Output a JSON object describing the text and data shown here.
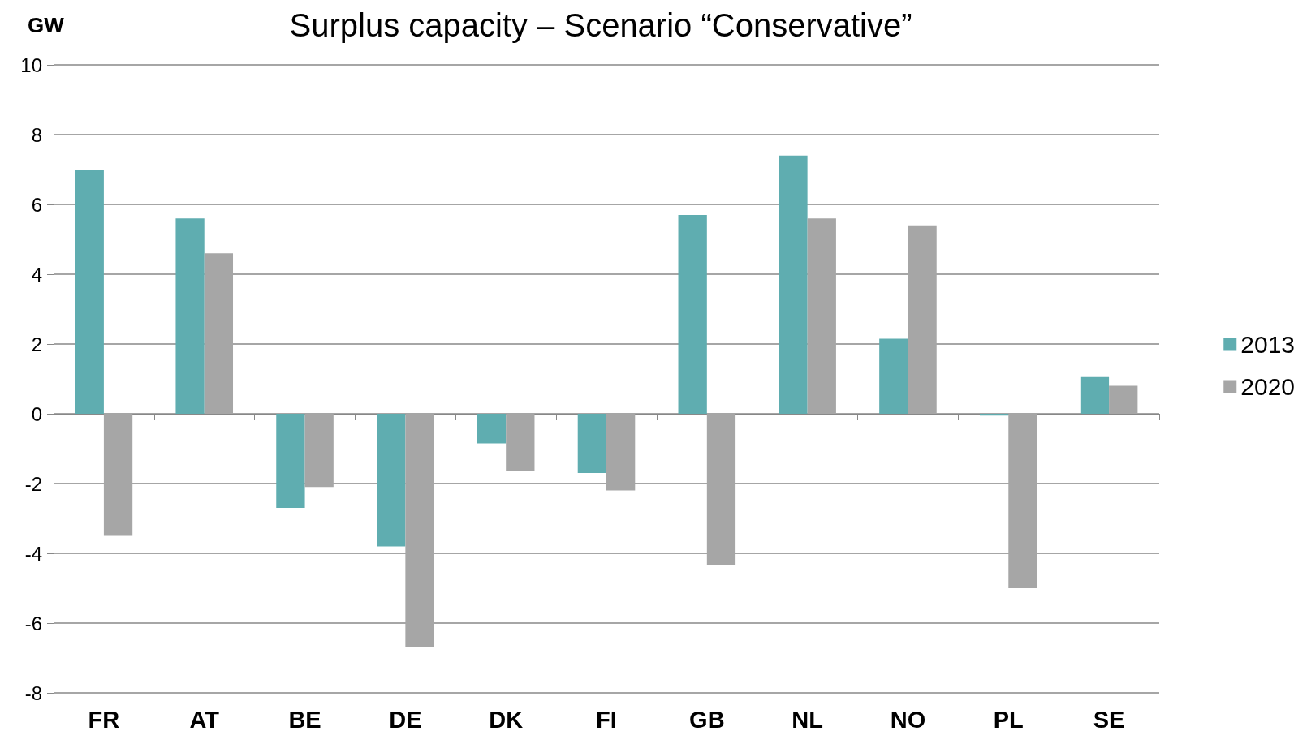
{
  "chart_data": {
    "type": "bar",
    "title": "Surplus capacity – Scenario “Conservative”",
    "ylabel": "GW",
    "categories": [
      "FR",
      "AT",
      "BE",
      "DE",
      "DK",
      "FI",
      "GB",
      "NL",
      "NO",
      "PL",
      "SE"
    ],
    "series": [
      {
        "name": "2013",
        "color": "#5fadb0",
        "values": [
          7.0,
          5.6,
          -2.7,
          -3.8,
          -0.85,
          -1.7,
          5.7,
          7.4,
          2.15,
          -0.05,
          1.05
        ]
      },
      {
        "name": "2020",
        "color": "#a6a6a6",
        "values": [
          -3.5,
          4.6,
          -2.1,
          -6.7,
          -1.65,
          -2.2,
          -4.35,
          5.6,
          5.4,
          -5.0,
          0.8
        ]
      }
    ],
    "ylim": [
      -8,
      10
    ],
    "yticks": [
      -8,
      -6,
      -4,
      -2,
      0,
      2,
      4,
      6,
      8,
      10
    ],
    "grid": "y",
    "legend": "right"
  }
}
